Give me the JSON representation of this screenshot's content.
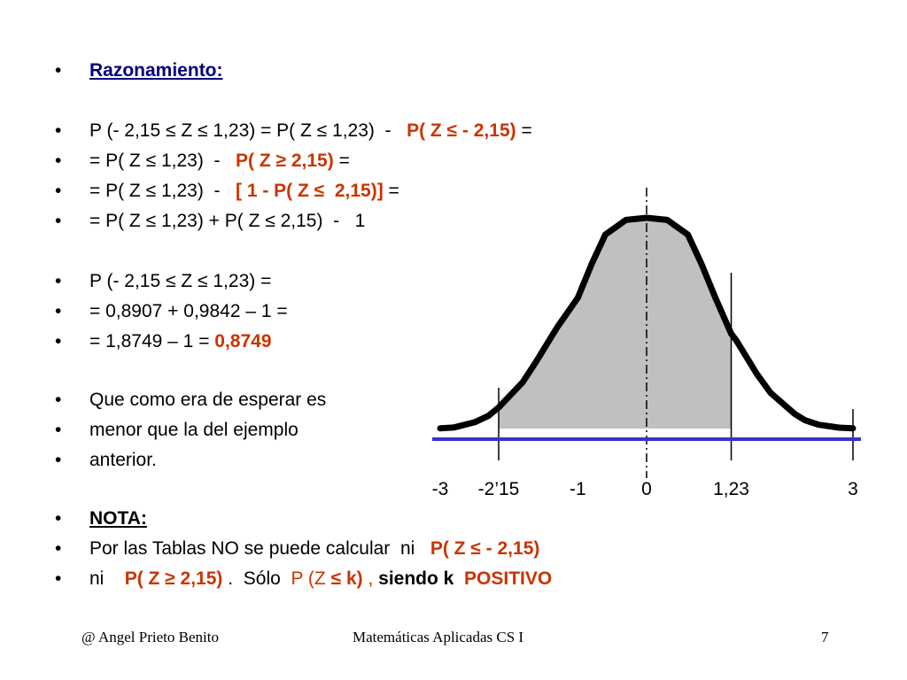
{
  "bullet_char": "•",
  "bullets": [
    [
      {
        "t": "Razonamiento:",
        "s": "navy bold ul"
      }
    ],
    [
      {
        "t": "P (- 2,15 ≤ Z ≤ 1,23) = P( Z ≤ 1,23)  -   "
      },
      {
        "t": "P( Z ≤ - 2,15)",
        "s": "red bold"
      },
      {
        "t": " ="
      }
    ],
    [
      {
        "t": "= P( Z ≤ 1,23)  -   "
      },
      {
        "t": "P( Z ≥ 2,15)",
        "s": "red bold"
      },
      {
        "t": " ="
      }
    ],
    [
      {
        "t": "= P( Z ≤ 1,23)  -   "
      },
      {
        "t": "[ 1 - P( Z ≤  2,15)]",
        "s": "red bold"
      },
      {
        "t": " ="
      }
    ],
    [
      {
        "t": "= P( Z ≤ 1,23) + P( Z ≤ 2,15)  -   1"
      }
    ],
    [
      {
        "t": "P (- 2,15 ≤ Z ≤ 1,23) ="
      }
    ],
    [
      {
        "t": "= 0,8907 + 0,9842 – 1 ="
      }
    ],
    [
      {
        "t": "= 1,8749 – 1 = "
      },
      {
        "t": "0,8749",
        "s": "red bold"
      }
    ],
    [
      {
        "t": "Que como era de esperar es"
      }
    ],
    [
      {
        "t": "menor que la del ejemplo"
      }
    ],
    [
      {
        "t": "anterior."
      }
    ],
    [
      {
        "t": "NOTA:",
        "s": "bold ul"
      }
    ],
    [
      {
        "t": "Por las Tablas NO se puede calcular  ni   "
      },
      {
        "t": "P( Z ≤ - 2,15)",
        "s": "red bold"
      }
    ],
    [
      {
        "t": "ni    "
      },
      {
        "t": "P( Z ≥ 2,15)",
        "s": "red bold"
      },
      {
        "t": " .  Sólo  "
      },
      {
        "t": "P (Z ",
        "s": "red"
      },
      {
        "t": "≤ k)",
        "s": "red bold"
      },
      {
        "t": " , ",
        "s": "red"
      },
      {
        "t": "siendo k",
        "s": "bold"
      },
      {
        "t": "  POSITIVO",
        "s": "red bold"
      }
    ]
  ],
  "chart_data": {
    "type": "area",
    "title": "",
    "xlabel": "",
    "ylabel": "",
    "x_tick_labels": [
      {
        "x": -3,
        "label": "-3"
      },
      {
        "x": -2.15,
        "label": "-2’15"
      },
      {
        "x": -1,
        "label": "-1"
      },
      {
        "x": 0,
        "label": "0"
      },
      {
        "x": 1.23,
        "label": "1,23"
      },
      {
        "x": 3,
        "label": "3"
      }
    ],
    "xlim": [
      -3,
      3
    ],
    "ylim": [
      0,
      1
    ],
    "curve": {
      "x": [
        -3,
        -2.8,
        -2.5,
        -2.3,
        -2.15,
        -1.8,
        -1.6,
        -1.3,
        -1,
        -0.8,
        -0.6,
        -0.3,
        0,
        0.3,
        0.6,
        0.8,
        1,
        1.23,
        1.3,
        1.6,
        1.8,
        2.15,
        2.3,
        2.5,
        2.8,
        3
      ],
      "y": [
        0.001,
        0.005,
        0.03,
        0.06,
        0.1,
        0.22,
        0.32,
        0.48,
        0.62,
        0.78,
        0.92,
        0.99,
        1.0,
        0.99,
        0.92,
        0.78,
        0.62,
        0.45,
        0.42,
        0.26,
        0.17,
        0.07,
        0.04,
        0.018,
        0.004,
        0.001
      ]
    },
    "shaded_region": [
      -2.15,
      1.23
    ],
    "reference_lines": [
      -2.15,
      1.23,
      3
    ],
    "center_line": 0,
    "colors": {
      "curve": "#000000",
      "fill": "#c0c0c0",
      "baseline": "#3333cc",
      "text_red": "#cc3300",
      "text_navy": "#000080"
    }
  },
  "footer": {
    "left": "@   Angel Prieto Benito",
    "center": "Matemáticas Aplicadas CS I",
    "page": "7"
  }
}
